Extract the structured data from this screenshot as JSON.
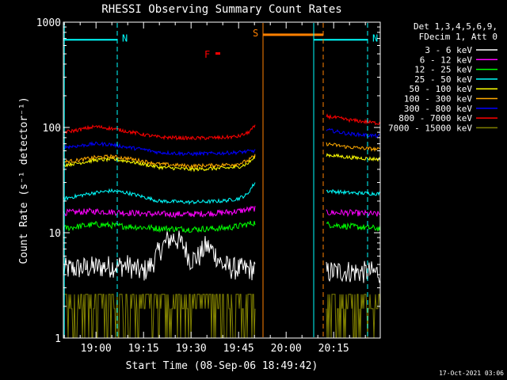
{
  "chart_data": {
    "type": "line",
    "title": "RHESSI Observing Summary Count Rates",
    "xlabel": "Start Time (08-Sep-06 18:49:42)",
    "ylabel": "Count Rate (s⁻¹ detector⁻¹)",
    "yscale": "log",
    "ylim": [
      1,
      1000
    ],
    "xlim_minutes": [
      0,
      100
    ],
    "x_ticks": [
      {
        "label": "19:00",
        "minutes": 10.3
      },
      {
        "label": "19:15",
        "minutes": 25.3
      },
      {
        "label": "19:30",
        "minutes": 40.3
      },
      {
        "label": "19:45",
        "minutes": 55.3
      },
      {
        "label": "20:00",
        "minutes": 70.3
      },
      {
        "label": "20:15",
        "minutes": 85.3
      }
    ],
    "y_ticks": [
      {
        "label": "1",
        "value": 1
      },
      {
        "label": "10",
        "value": 10
      },
      {
        "label": "100",
        "value": 100
      },
      {
        "label": "1000",
        "value": 1000
      }
    ],
    "legend": {
      "placement": "top-right",
      "header": [
        "Det 1,3,4,5,6,9,",
        "FDecim 1, Att 0"
      ]
    },
    "series": [
      {
        "name": "3 - 6 keV",
        "color": "#ffffff",
        "x": [
          0,
          5,
          10,
          15,
          20,
          25,
          28,
          30,
          33,
          35,
          38,
          40,
          43,
          45,
          47,
          50,
          53,
          56,
          60.5,
          83,
          86,
          90,
          95,
          99
        ],
        "y": [
          4.5,
          4.6,
          4.7,
          4.8,
          4.9,
          4.2,
          5.0,
          6.5,
          8.5,
          9.0,
          7.5,
          5.5,
          6.0,
          7.5,
          6.8,
          5.0,
          4.6,
          4.5,
          4.5,
          4.2,
          4.3,
          4.3,
          4.2,
          4.2
        ]
      },
      {
        "name": "6 - 12 keV",
        "color": "#ff00ff",
        "x": [
          0,
          10,
          20,
          30,
          40,
          50,
          55,
          60.5,
          83,
          90,
          99
        ],
        "y": [
          15.5,
          16,
          15.5,
          15,
          15,
          15.5,
          16,
          17,
          15.5,
          15.5,
          15
        ]
      },
      {
        "name": "12 - 25 keV",
        "color": "#00ff00",
        "x": [
          0,
          10,
          20,
          30,
          40,
          50,
          55,
          60.5,
          83,
          90,
          99
        ],
        "y": [
          11,
          12,
          11.5,
          11,
          10.8,
          11,
          11.5,
          12.5,
          12,
          11.5,
          11
        ]
      },
      {
        "name": "25 - 50 keV",
        "color": "#00ffff",
        "x": [
          0,
          5,
          10,
          15,
          20,
          25,
          30,
          40,
          50,
          55,
          58,
          60.5,
          83,
          90,
          99
        ],
        "y": [
          21,
          22.5,
          24,
          25,
          24,
          22,
          20,
          19.5,
          20,
          21,
          23,
          30,
          25,
          24,
          23.5
        ]
      },
      {
        "name": "50 - 100 keV",
        "color": "#ffff00",
        "x": [
          0,
          5,
          10,
          15,
          20,
          25,
          30,
          40,
          50,
          55,
          58,
          60.5,
          83,
          90,
          99
        ],
        "y": [
          44,
          46,
          49,
          50,
          48,
          45,
          42,
          40,
          41,
          42,
          45,
          52,
          55,
          52,
          50
        ]
      },
      {
        "name": "100 - 300 keV",
        "color": "#ffaa00",
        "x": [
          0,
          5,
          10,
          15,
          20,
          25,
          30,
          40,
          50,
          55,
          58,
          60.5,
          83,
          90,
          99
        ],
        "y": [
          47,
          49,
          52,
          53,
          51,
          48,
          45,
          43,
          44,
          45,
          48,
          54,
          70,
          65,
          62
        ]
      },
      {
        "name": "300 - 800 keV",
        "color": "#0000ff",
        "x": [
          0,
          5,
          10,
          15,
          20,
          25,
          30,
          40,
          50,
          55,
          60.5,
          83,
          90,
          99
        ],
        "y": [
          65,
          67,
          70,
          69,
          65,
          62,
          58,
          56,
          57,
          58,
          60,
          95,
          87,
          83
        ]
      },
      {
        "name": "800 - 7000 keV",
        "color": "#ff0000",
        "x": [
          0,
          5,
          10,
          15,
          20,
          25,
          30,
          40,
          50,
          55,
          58,
          60.5,
          83,
          90,
          99
        ],
        "y": [
          90,
          95,
          102,
          98,
          92,
          86,
          81,
          79,
          80,
          82,
          88,
          102,
          128,
          118,
          110
        ]
      },
      {
        "name": "7000 - 15000 keV",
        "color": "#808000",
        "x": [
          0,
          10,
          20,
          30,
          40,
          50,
          60.5,
          83,
          90,
          99
        ],
        "y": [
          2.5,
          2.5,
          2.5,
          2.5,
          2.5,
          2.5,
          2.5,
          2.5,
          2.5,
          2.5
        ]
      }
    ],
    "flags": [
      {
        "label": "N",
        "color": "#00ffff",
        "x_start": 0,
        "x_end": 17,
        "level": 680
      },
      {
        "label": "N",
        "color": "#00ffff",
        "x_start": 79,
        "x_end": 96,
        "level": 680
      },
      {
        "label": "S",
        "color": "#ff8000",
        "x_start": 63,
        "x_end": 82,
        "level": 760
      },
      {
        "label": "F",
        "color": "#ff0000",
        "x_start": 44.5,
        "x_end": 45.5,
        "level": 500
      }
    ],
    "markers": [
      {
        "color": "#00ffff",
        "style": "solid",
        "x": 0.3
      },
      {
        "color": "#00ffff",
        "style": "dashed",
        "x": 17
      },
      {
        "color": "#ff8000",
        "style": "solid",
        "x": 63
      },
      {
        "color": "#ff8000",
        "style": "dashed",
        "x": 82
      },
      {
        "color": "#00ffff",
        "style": "solid",
        "x": 79
      },
      {
        "color": "#00ffff",
        "style": "dashed",
        "x": 96
      }
    ],
    "data_gap_minutes": [
      60.5,
      83
    ]
  },
  "footer": {
    "date": "17-Oct-2021 03:06"
  }
}
